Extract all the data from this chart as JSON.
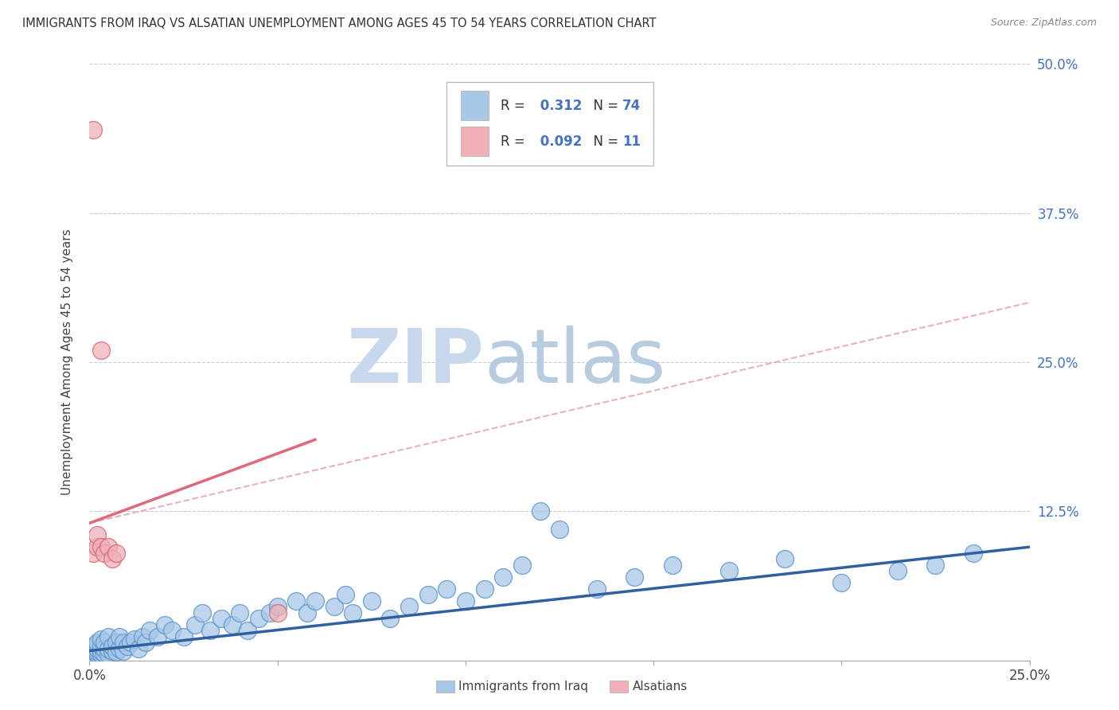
{
  "title": "IMMIGRANTS FROM IRAQ VS ALSATIAN UNEMPLOYMENT AMONG AGES 45 TO 54 YEARS CORRELATION CHART",
  "source": "Source: ZipAtlas.com",
  "ylabel": "Unemployment Among Ages 45 to 54 years",
  "xlim": [
    0.0,
    0.25
  ],
  "ylim": [
    0.0,
    0.5
  ],
  "xticks": [
    0.0,
    0.05,
    0.1,
    0.15,
    0.2,
    0.25
  ],
  "yticks_right": [
    0.0,
    0.125,
    0.25,
    0.375,
    0.5
  ],
  "ytick_right_labels": [
    "",
    "12.5%",
    "25.0%",
    "37.5%",
    "50.0%"
  ],
  "series1_color": "#a8c8e8",
  "series1_edge": "#5590c8",
  "series2_color": "#f0b0b8",
  "series2_edge": "#d06070",
  "trend1_color": "#3060a0",
  "trend2_color_solid": "#e06878",
  "trend2_color_dash": "#e090a0",
  "R1": 0.312,
  "N1": 74,
  "R2": 0.092,
  "N2": 11,
  "watermark_zip": "ZIP",
  "watermark_atlas": "atlas",
  "watermark_color_zip": "#c8d8ec",
  "watermark_color_atlas": "#b8cce0",
  "iraq_x": [
    0.001,
    0.001,
    0.001,
    0.001,
    0.002,
    0.002,
    0.002,
    0.002,
    0.002,
    0.003,
    0.003,
    0.003,
    0.003,
    0.004,
    0.004,
    0.004,
    0.005,
    0.005,
    0.005,
    0.006,
    0.006,
    0.007,
    0.007,
    0.008,
    0.008,
    0.009,
    0.009,
    0.01,
    0.011,
    0.012,
    0.013,
    0.014,
    0.015,
    0.016,
    0.018,
    0.02,
    0.022,
    0.025,
    0.028,
    0.03,
    0.032,
    0.035,
    0.038,
    0.04,
    0.042,
    0.045,
    0.048,
    0.05,
    0.055,
    0.058,
    0.06,
    0.065,
    0.068,
    0.07,
    0.075,
    0.08,
    0.085,
    0.09,
    0.095,
    0.1,
    0.105,
    0.11,
    0.115,
    0.12,
    0.125,
    0.135,
    0.145,
    0.155,
    0.17,
    0.185,
    0.2,
    0.215,
    0.225,
    0.235
  ],
  "iraq_y": [
    0.005,
    0.008,
    0.01,
    0.012,
    0.005,
    0.007,
    0.01,
    0.013,
    0.015,
    0.005,
    0.008,
    0.012,
    0.018,
    0.006,
    0.01,
    0.015,
    0.005,
    0.01,
    0.02,
    0.008,
    0.012,
    0.007,
    0.015,
    0.01,
    0.02,
    0.008,
    0.015,
    0.012,
    0.015,
    0.018,
    0.01,
    0.02,
    0.015,
    0.025,
    0.02,
    0.03,
    0.025,
    0.02,
    0.03,
    0.04,
    0.025,
    0.035,
    0.03,
    0.04,
    0.025,
    0.035,
    0.04,
    0.045,
    0.05,
    0.04,
    0.05,
    0.045,
    0.055,
    0.04,
    0.05,
    0.035,
    0.045,
    0.055,
    0.06,
    0.05,
    0.06,
    0.07,
    0.08,
    0.125,
    0.11,
    0.06,
    0.07,
    0.08,
    0.075,
    0.085,
    0.065,
    0.075,
    0.08,
    0.09
  ],
  "alsatian_x": [
    0.001,
    0.001,
    0.002,
    0.002,
    0.003,
    0.003,
    0.004,
    0.005,
    0.006,
    0.007,
    0.05
  ],
  "alsatian_y": [
    0.445,
    0.09,
    0.095,
    0.105,
    0.26,
    0.095,
    0.09,
    0.095,
    0.085,
    0.09,
    0.04
  ],
  "trend1_x0": 0.0,
  "trend1_y0": 0.008,
  "trend1_x1": 0.25,
  "trend1_y1": 0.095,
  "trend2_solid_x0": 0.0,
  "trend2_solid_y0": 0.115,
  "trend2_solid_x1": 0.06,
  "trend2_solid_y1": 0.185,
  "trend2_dash_x0": 0.0,
  "trend2_dash_y0": 0.115,
  "trend2_dash_x1": 0.25,
  "trend2_dash_y1": 0.3
}
